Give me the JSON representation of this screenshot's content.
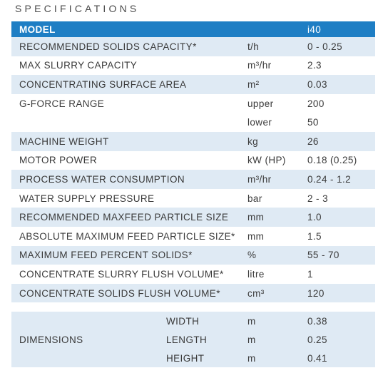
{
  "heading": "SPECIFICATIONS",
  "header": {
    "label": "MODEL",
    "model": "i40"
  },
  "rows": [
    {
      "name": "RECOMMENDED SOLIDS CAPACITY*",
      "unit": "t/h",
      "value": "0 - 0.25"
    },
    {
      "name": "MAX SLURRY CAPACITY",
      "unit": "m³/hr",
      "value": "2.3"
    },
    {
      "name": "CONCENTRATING SURFACE AREA",
      "unit": "m²",
      "value": "0.03"
    },
    {
      "name": "G-FORCE RANGE",
      "unit": "upper",
      "value": "200"
    },
    {
      "name": "",
      "unit": "lower",
      "value": "50"
    },
    {
      "name": "MACHINE WEIGHT",
      "unit": "kg",
      "value": "26"
    },
    {
      "name": "MOTOR POWER",
      "unit": "kW (HP)",
      "value": "0.18 (0.25)"
    },
    {
      "name": "PROCESS WATER CONSUMPTION",
      "unit": "m³/hr",
      "value": "0.24 - 1.2"
    },
    {
      "name": "WATER SUPPLY PRESSURE",
      "unit": "bar",
      "value": "2 - 3"
    },
    {
      "name": "RECOMMENDED MAXFEED PARTICLE SIZE",
      "unit": "mm",
      "value": "1.0"
    },
    {
      "name": "ABSOLUTE MAXIMUM FEED PARTICLE SIZE*",
      "unit": "mm",
      "value": "1.5"
    },
    {
      "name": "MAXIMUM FEED PERCENT SOLIDS*",
      "unit": "%",
      "value": "55 - 70"
    },
    {
      "name": "CONCENTRATE SLURRY FLUSH VOLUME*",
      "unit": "litre",
      "value": "1"
    },
    {
      "name": "CONCENTRATE SOLIDS FLUSH VOLUME*",
      "unit": "cm³",
      "value": "120"
    }
  ],
  "dimensions": {
    "label": "DIMENSIONS",
    "items": [
      {
        "name": "WIDTH",
        "unit": "m",
        "value": "0.38"
      },
      {
        "name": "LENGTH",
        "unit": "m",
        "value": "0.25"
      },
      {
        "name": "HEIGHT",
        "unit": "m",
        "value": "0.41"
      }
    ]
  },
  "colors": {
    "header": "#1e7ec4",
    "shade": "#dfeaf4",
    "text": "#3a3a3a"
  }
}
